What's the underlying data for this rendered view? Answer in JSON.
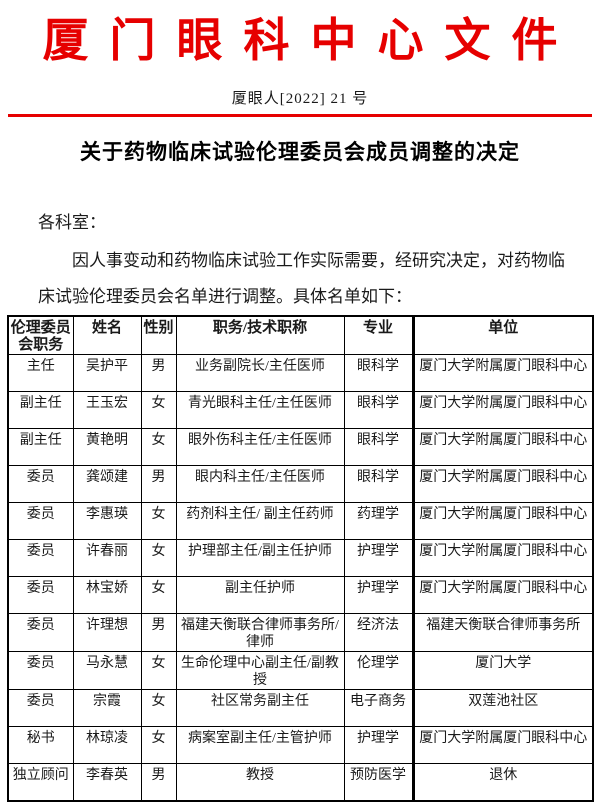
{
  "page": {
    "header_title": "厦门眼科中心文件",
    "doc_number": "厦眼人[2022] 21 号",
    "title": "关于药物临床试验伦理委员会成员调整的决定",
    "salutation": "各科室：",
    "body_line1": "因人事变动和药物临床试验工作实际需要，经研究决定，对药物临",
    "body_line2": "床试验伦理委员会名单进行调整。具体名单如下：",
    "colors": {
      "accent_red": "#e60000",
      "text": "#1a1a1a",
      "table_border": "#000000"
    }
  },
  "table": {
    "headers": [
      "伦理委员会职务",
      "姓名",
      "性别",
      "职务/技术职称",
      "专业",
      "单位"
    ],
    "rows": [
      [
        "主任",
        "吴护平",
        "男",
        "业务副院长/主任医师",
        "眼科学",
        "厦门大学附属厦门眼科中心"
      ],
      [
        "副主任",
        "王玉宏",
        "女",
        "青光眼科主任/主任医师",
        "眼科学",
        "厦门大学附属厦门眼科中心"
      ],
      [
        "副主任",
        "黄艳明",
        "女",
        "眼外伤科主任/主任医师",
        "眼科学",
        "厦门大学附属厦门眼科中心"
      ],
      [
        "委员",
        "龚颂建",
        "男",
        "眼内科主任/主任医师",
        "眼科学",
        "厦门大学附属厦门眼科中心"
      ],
      [
        "委员",
        "李惠瑛",
        "女",
        "药剂科主任/ 副主任药师",
        "药理学",
        "厦门大学附属厦门眼科中心"
      ],
      [
        "委员",
        "许春丽",
        "女",
        "护理部主任/副主任护师",
        "护理学",
        "厦门大学附属厦门眼科中心"
      ],
      [
        "委员",
        "林宝娇",
        "女",
        "副主任护师",
        "护理学",
        "厦门大学附属厦门眼科中心"
      ],
      [
        "委员",
        "许理想",
        "男",
        "福建天衡联合律师事务所/律师",
        "经济法",
        "福建天衡联合律师事务所"
      ],
      [
        "委员",
        "马永慧",
        "女",
        "生命伦理中心副主任/副教授",
        "伦理学",
        "厦门大学"
      ],
      [
        "委员",
        "宗霞",
        "女",
        "社区常务副主任",
        "电子商务",
        "双莲池社区"
      ],
      [
        "秘书",
        "林琼凌",
        "女",
        "病案室副主任/主管护师",
        "护理学",
        "厦门大学附属厦门眼科中心"
      ],
      [
        "独立顾问",
        "李春英",
        "男",
        "教授",
        "预防医学",
        "退休"
      ]
    ]
  }
}
